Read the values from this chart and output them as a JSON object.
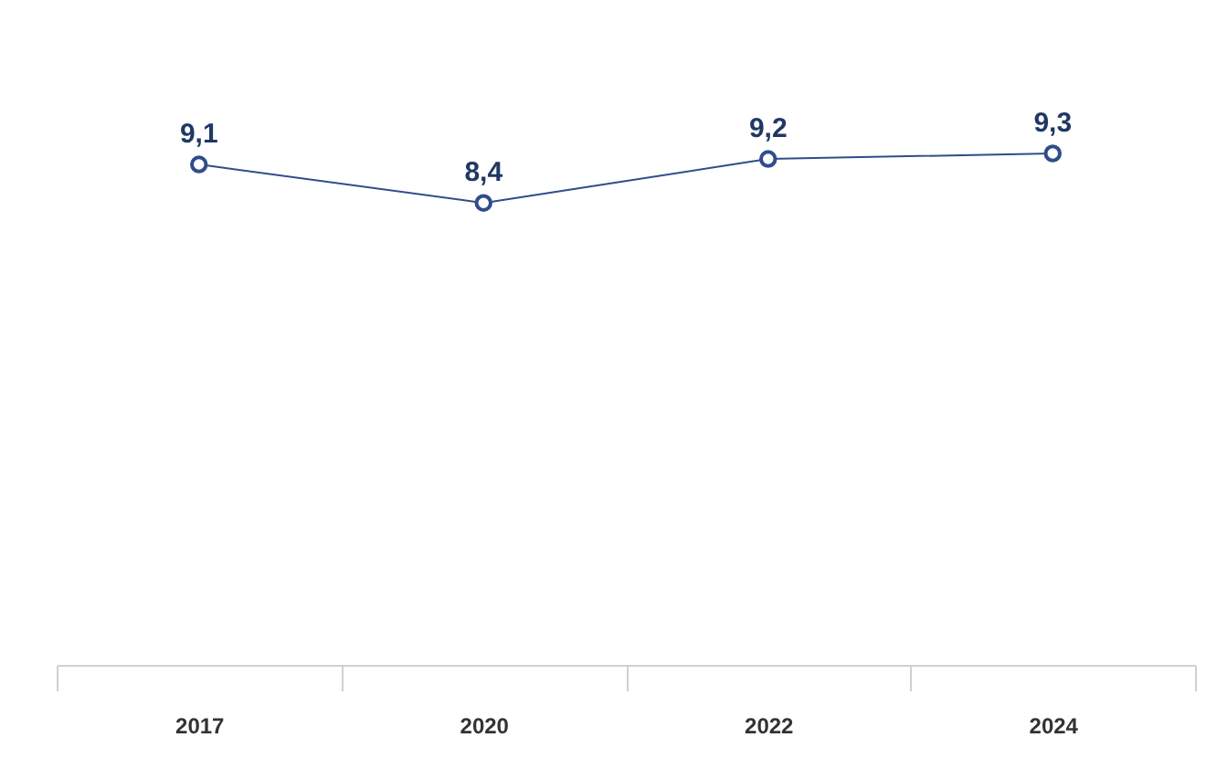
{
  "chart_data": {
    "type": "line",
    "categories": [
      "2017",
      "2020",
      "2022",
      "2024"
    ],
    "series": [
      {
        "color": "#2f4d8a",
        "values": [
          9.1,
          8.4,
          9.2,
          9.3
        ],
        "value_labels": [
          "9,1",
          "8,4",
          "9,2",
          "9,3"
        ]
      }
    ],
    "marker": "circle",
    "line_style": "solid",
    "grid": false,
    "tick_labels": "x"
  }
}
